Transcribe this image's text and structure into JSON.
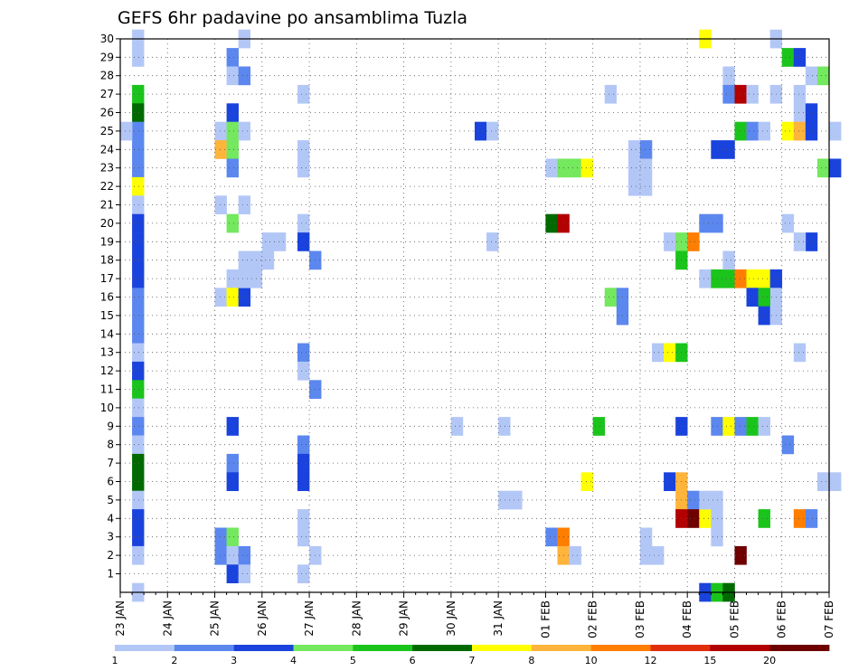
{
  "chart_data": {
    "type": "heatmap",
    "title": "GEFS 6hr padavine po ansamblima Tuzla",
    "y_ticks": [
      1,
      2,
      3,
      4,
      5,
      6,
      7,
      8,
      9,
      10,
      11,
      12,
      13,
      14,
      15,
      16,
      17,
      18,
      19,
      20,
      21,
      22,
      23,
      24,
      25,
      26,
      27,
      28,
      29,
      30
    ],
    "y_range": [
      0,
      30
    ],
    "x_start_date": "23 JAN",
    "x_end_date": "07 FEB",
    "x_ticks": [
      "23 JAN",
      "24 JAN",
      "25 JAN",
      "26 JAN",
      "27 JAN",
      "28 JAN",
      "29 JAN",
      "30 JAN",
      "31 JAN",
      "01 FEB",
      "02 FEB",
      "03 FEB",
      "04 FEB",
      "05 FEB",
      "06 FEB",
      "07 FEB"
    ],
    "grid": true,
    "colorbar": {
      "labels": [
        "1",
        "2",
        "3",
        "4",
        "5",
        "6",
        "7",
        "8",
        "10",
        "12",
        "15",
        "20"
      ],
      "colors": [
        "#b3c7f7",
        "#5b87ef",
        "#1a43dd",
        "#74e85e",
        "#1bc41b",
        "#006a00",
        "#ffff00",
        "#ffb43c",
        "#ff7e00",
        "#e12e0c",
        "#b30000",
        "#6e0000"
      ]
    },
    "cells": [
      [
        0.25,
        30,
        1
      ],
      [
        0.25,
        29,
        1
      ],
      [
        0.25,
        27,
        5
      ],
      [
        0.25,
        26,
        6
      ],
      [
        0.25,
        25,
        2
      ],
      [
        0.0,
        25,
        1
      ],
      [
        0.25,
        24,
        2
      ],
      [
        0.25,
        23,
        2
      ],
      [
        0.25,
        22,
        7
      ],
      [
        0.25,
        21,
        1
      ],
      [
        0.25,
        20,
        3
      ],
      [
        0.25,
        19,
        3
      ],
      [
        0.25,
        18,
        3
      ],
      [
        0.25,
        17,
        3
      ],
      [
        0.25,
        16,
        2
      ],
      [
        0.25,
        15,
        2
      ],
      [
        0.25,
        14,
        2
      ],
      [
        0.25,
        13,
        1
      ],
      [
        0.25,
        12,
        3
      ],
      [
        0.25,
        11,
        5
      ],
      [
        0.25,
        10,
        1
      ],
      [
        0.25,
        9,
        2
      ],
      [
        0.25,
        8,
        1
      ],
      [
        0.25,
        7,
        6
      ],
      [
        0.25,
        6,
        6
      ],
      [
        0.25,
        5,
        1
      ],
      [
        0.25,
        4,
        3
      ],
      [
        0.25,
        3,
        3
      ],
      [
        0.25,
        2,
        1
      ],
      [
        0.25,
        0,
        1
      ],
      [
        2.5,
        30,
        1
      ],
      [
        2.25,
        29,
        2
      ],
      [
        2.25,
        28,
        1
      ],
      [
        2.5,
        28,
        2
      ],
      [
        2.25,
        26,
        3
      ],
      [
        2.0,
        25,
        1
      ],
      [
        2.25,
        25,
        4
      ],
      [
        2.5,
        25,
        1
      ],
      [
        2.0,
        24,
        8
      ],
      [
        2.25,
        24,
        4
      ],
      [
        2.25,
        23,
        2
      ],
      [
        2.0,
        21,
        1
      ],
      [
        2.5,
        21,
        1
      ],
      [
        2.25,
        20,
        4
      ],
      [
        2.25,
        17,
        1
      ],
      [
        2.0,
        16,
        1
      ],
      [
        2.25,
        16,
        7
      ],
      [
        2.5,
        16,
        3
      ],
      [
        2.25,
        9,
        3
      ],
      [
        2.25,
        7,
        2
      ],
      [
        2.25,
        6,
        3
      ],
      [
        2.0,
        3,
        2
      ],
      [
        2.25,
        3,
        4
      ],
      [
        2.0,
        2,
        2
      ],
      [
        2.25,
        2,
        1
      ],
      [
        2.5,
        2,
        2
      ],
      [
        2.25,
        1,
        3
      ],
      [
        2.5,
        1,
        1
      ],
      [
        3.0,
        19,
        1
      ],
      [
        3.25,
        19,
        1
      ],
      [
        2.5,
        18,
        1
      ],
      [
        2.75,
        18,
        1
      ],
      [
        3.0,
        18,
        1
      ],
      [
        2.5,
        17,
        1
      ],
      [
        2.75,
        17,
        1
      ],
      [
        3.75,
        27,
        1
      ],
      [
        3.75,
        24,
        1
      ],
      [
        3.75,
        23,
        1
      ],
      [
        3.75,
        20,
        1
      ],
      [
        3.75,
        19,
        3
      ],
      [
        4.0,
        18,
        2
      ],
      [
        3.75,
        13,
        2
      ],
      [
        3.75,
        12,
        1
      ],
      [
        4.0,
        11,
        2
      ],
      [
        3.75,
        8,
        2
      ],
      [
        3.75,
        7,
        3
      ],
      [
        3.75,
        6,
        3
      ],
      [
        3.75,
        4,
        1
      ],
      [
        3.75,
        3,
        1
      ],
      [
        4.0,
        2,
        1
      ],
      [
        3.75,
        1,
        1
      ],
      [
        7.5,
        25,
        3
      ],
      [
        7.75,
        25,
        1
      ],
      [
        7.75,
        19,
        1
      ],
      [
        7.0,
        9,
        1
      ],
      [
        8.0,
        9,
        1
      ],
      [
        8.0,
        5,
        1
      ],
      [
        8.25,
        5,
        1
      ],
      [
        9.0,
        23,
        1
      ],
      [
        9.25,
        23,
        4
      ],
      [
        9.5,
        23,
        4
      ],
      [
        9.75,
        23,
        7
      ],
      [
        9.0,
        20,
        6
      ],
      [
        9.25,
        20,
        11
      ],
      [
        9.75,
        6,
        7
      ],
      [
        10.0,
        9,
        5
      ],
      [
        9.0,
        3,
        2
      ],
      [
        9.25,
        3,
        9
      ],
      [
        9.25,
        2,
        8
      ],
      [
        9.5,
        2,
        1
      ],
      [
        10.25,
        27,
        1
      ],
      [
        10.25,
        16,
        4
      ],
      [
        10.5,
        16,
        2
      ],
      [
        10.5,
        15,
        2
      ],
      [
        10.75,
        24,
        1
      ],
      [
        11.0,
        24,
        2
      ],
      [
        10.75,
        23,
        1
      ],
      [
        11.0,
        23,
        1
      ],
      [
        10.75,
        22,
        1
      ],
      [
        11.0,
        22,
        1
      ],
      [
        11.0,
        3,
        1
      ],
      [
        11.0,
        2,
        1
      ],
      [
        11.25,
        2,
        1
      ],
      [
        11.5,
        19,
        1
      ],
      [
        11.75,
        19,
        4
      ],
      [
        12.0,
        19,
        9
      ],
      [
        11.75,
        18,
        5
      ],
      [
        11.25,
        13,
        1
      ],
      [
        11.5,
        13,
        7
      ],
      [
        11.75,
        13,
        5
      ],
      [
        11.5,
        6,
        3
      ],
      [
        11.75,
        6,
        8
      ],
      [
        11.75,
        5,
        8
      ],
      [
        12.0,
        5,
        2
      ],
      [
        11.75,
        4,
        11
      ],
      [
        12.0,
        4,
        12
      ],
      [
        12.25,
        4,
        7
      ],
      [
        12.5,
        4,
        1
      ],
      [
        12.25,
        5,
        1
      ],
      [
        12.5,
        5,
        1
      ],
      [
        12.5,
        3,
        1
      ],
      [
        11.75,
        9,
        3
      ],
      [
        12.25,
        0,
        3
      ],
      [
        12.5,
        0,
        5
      ],
      [
        12.75,
        0,
        6
      ],
      [
        12.75,
        28,
        1
      ],
      [
        12.75,
        27,
        2
      ],
      [
        13.0,
        27,
        11
      ],
      [
        13.25,
        27,
        1
      ],
      [
        13.75,
        27,
        1
      ],
      [
        12.5,
        24,
        3
      ],
      [
        12.75,
        24,
        3
      ],
      [
        12.25,
        20,
        2
      ],
      [
        12.5,
        20,
        2
      ],
      [
        12.25,
        17,
        1
      ],
      [
        12.5,
        17,
        5
      ],
      [
        12.75,
        17,
        5
      ],
      [
        13.0,
        17,
        9
      ],
      [
        13.25,
        17,
        7
      ],
      [
        13.5,
        17,
        7
      ],
      [
        13.75,
        17,
        3
      ],
      [
        12.75,
        18,
        1
      ],
      [
        13.75,
        16,
        1
      ],
      [
        13.25,
        16,
        3
      ],
      [
        13.5,
        16,
        5
      ],
      [
        13.5,
        15,
        3
      ],
      [
        13.75,
        15,
        1
      ],
      [
        12.5,
        9,
        2
      ],
      [
        12.75,
        9,
        7
      ],
      [
        13.0,
        9,
        2
      ],
      [
        13.25,
        9,
        5
      ],
      [
        13.5,
        9,
        1
      ],
      [
        13.0,
        25,
        5
      ],
      [
        13.25,
        25,
        2
      ],
      [
        13.5,
        25,
        1
      ],
      [
        13.75,
        30,
        1
      ],
      [
        14.0,
        29,
        5
      ],
      [
        14.25,
        29,
        3
      ],
      [
        14.5,
        28,
        1
      ],
      [
        14.75,
        28,
        4
      ],
      [
        14.25,
        26,
        1
      ],
      [
        14.5,
        26,
        3
      ],
      [
        14.0,
        25,
        7
      ],
      [
        14.25,
        25,
        8
      ],
      [
        14.5,
        25,
        3
      ],
      [
        14.25,
        27,
        1
      ],
      [
        15.0,
        25,
        1
      ],
      [
        14.75,
        23,
        4
      ],
      [
        15.0,
        23,
        3
      ],
      [
        14.0,
        20,
        1
      ],
      [
        14.5,
        19,
        3
      ],
      [
        14.25,
        19,
        1
      ],
      [
        14.25,
        13,
        1
      ],
      [
        14.0,
        8,
        2
      ],
      [
        14.75,
        6,
        1
      ],
      [
        15.0,
        6,
        1
      ],
      [
        13.5,
        4,
        5
      ],
      [
        14.25,
        4,
        9
      ],
      [
        14.5,
        4,
        2
      ],
      [
        13.0,
        2,
        12
      ],
      [
        12.25,
        30,
        7
      ]
    ]
  }
}
